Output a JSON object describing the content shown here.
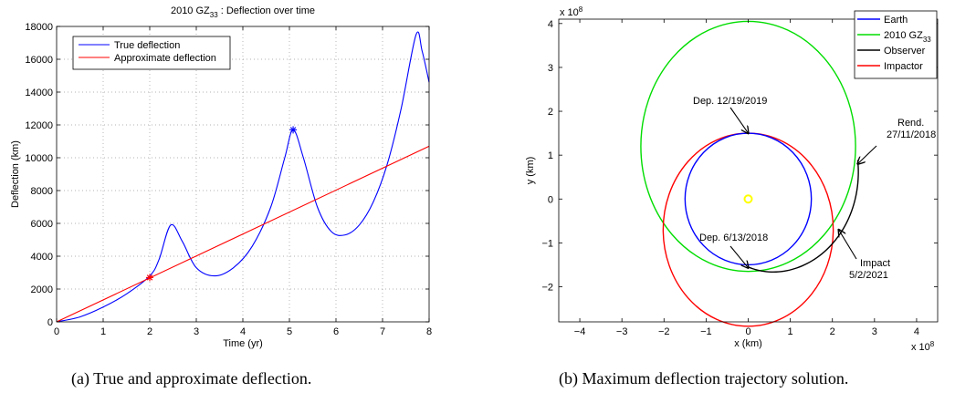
{
  "captions": {
    "left": "(a)  True and approximate deflection.",
    "right": "(b)  Maximum deflection trajectory solution."
  },
  "chart_data": [
    {
      "type": "line",
      "title": "2010 GZ33 : Deflection over time",
      "title_parts": {
        "main": "2010 GZ",
        "sub": "33",
        "rest": " : Deflection over time"
      },
      "xlabel": "Time (yr)",
      "ylabel": "Deflection (km)",
      "xlim": [
        0,
        8
      ],
      "ylim": [
        0,
        18000
      ],
      "xticks": [
        0,
        1,
        2,
        3,
        4,
        5,
        6,
        7,
        8
      ],
      "yticks": [
        0,
        2000,
        4000,
        6000,
        8000,
        10000,
        12000,
        14000,
        16000,
        18000
      ],
      "grid": true,
      "legend_position": "top-left",
      "colors": {
        "true": "#0000ff",
        "approx": "#ff0000"
      },
      "series": [
        {
          "name": "True deflection",
          "x": [
            0,
            0.5,
            1.0,
            1.5,
            2.0,
            2.2,
            2.45,
            2.7,
            3.0,
            3.4,
            3.8,
            4.2,
            4.6,
            4.9,
            5.08,
            5.3,
            5.6,
            5.9,
            6.2,
            6.5,
            6.8,
            7.1,
            7.4,
            7.72,
            7.85,
            8.0
          ],
          "y": [
            0,
            300,
            900,
            1700,
            2800,
            3800,
            5900,
            4900,
            3300,
            2800,
            3300,
            4600,
            7000,
            10000,
            11700,
            10000,
            7000,
            5500,
            5300,
            5900,
            7300,
            9600,
            13000,
            17500,
            16500,
            14600
          ]
        },
        {
          "name": "Approximate deflection",
          "x": [
            0,
            8
          ],
          "y": [
            0,
            10700
          ]
        }
      ],
      "markers": [
        {
          "x": 2.0,
          "y": 2700,
          "color": "#ff0000"
        },
        {
          "x": 5.08,
          "y": 11700,
          "color": "#0000ff"
        }
      ]
    },
    {
      "type": "line",
      "xlabel": "x (km)",
      "ylabel": "y (km)",
      "xlim": [
        -4.5,
        4.5
      ],
      "ylim": [
        -2.8,
        4.1
      ],
      "axis_multiplier": "x 10",
      "axis_multiplier_exp": "8",
      "xticks": [
        -4,
        -3,
        -2,
        -1,
        0,
        1,
        2,
        3,
        4
      ],
      "yticks": [
        -2,
        -1,
        0,
        1,
        2,
        3,
        4
      ],
      "grid": false,
      "legend_position": "top-right",
      "legend": [
        {
          "label": "Earth",
          "color": "#0000ff"
        },
        {
          "label": "2010 GZ",
          "sub": "33",
          "color": "#00dd00"
        },
        {
          "label": "Observer",
          "color": "#000000"
        },
        {
          "label": "Impactor",
          "color": "#ff0000"
        }
      ],
      "orbits": {
        "earth": {
          "cx": 0,
          "cy": 0,
          "rx": 1.5,
          "ry": 1.5
        },
        "asteroid": {
          "cx": 0,
          "cy": 1.2,
          "rx": 2.55,
          "ry": 2.85
        },
        "impactor": {
          "cx": 0,
          "cy": -0.7,
          "rx": 2.02,
          "ry": 2.2
        }
      },
      "sun": {
        "x": 0,
        "y": 0,
        "color": "#ffff00"
      },
      "annotations": [
        {
          "text": "Dep. 12/19/2019",
          "x": -1.35,
          "y": 2.2,
          "ax": 0,
          "ay": 1.5
        },
        {
          "text": "Rend.",
          "text2": "27/11/2018",
          "x": 3.2,
          "y": 1.75,
          "ax": 2.6,
          "ay": 0.8
        },
        {
          "text": "Dep. 6/13/2018",
          "x": -1.55,
          "y": -0.85,
          "ax": 0,
          "ay": -1.57
        },
        {
          "text": "Impact",
          "text2": "5/2/2021",
          "x": 3.0,
          "y": -1.35,
          "ax": 2.15,
          "ay": -0.7
        }
      ]
    }
  ]
}
